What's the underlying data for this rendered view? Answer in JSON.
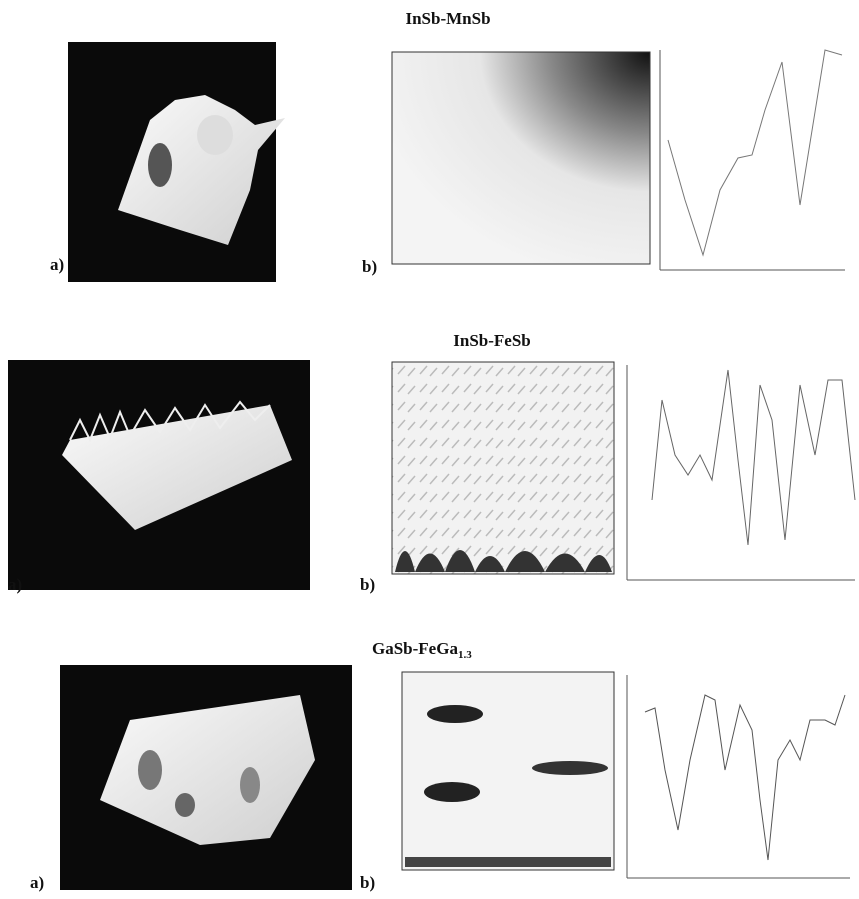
{
  "panels": [
    {
      "title": "InSb-MnSb",
      "label_a": "a)",
      "label_b": "b)"
    },
    {
      "title": "InSb-FeSb",
      "label_a": "a)",
      "label_b": "b)"
    },
    {
      "title_main": "GaSb-FeGa",
      "title_sub": "1.3",
      "label_a": "a)",
      "label_b": "b)"
    }
  ]
}
